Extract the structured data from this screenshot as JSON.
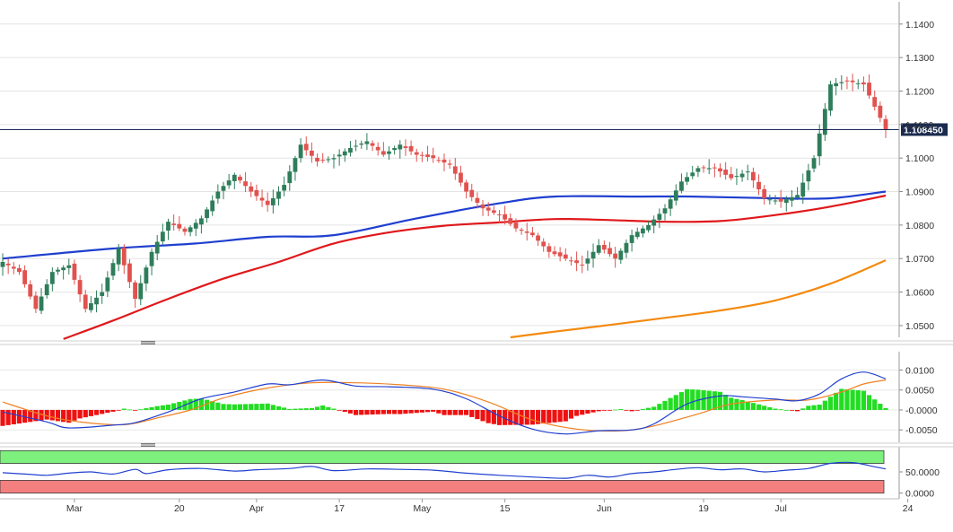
{
  "chart_data": {
    "type": "candlestick",
    "instrument_panel": {
      "y_ticks": [
        "1.1400",
        "1.1300",
        "1.1200",
        "1.1100",
        "1.1000",
        "1.0900",
        "1.0800",
        "1.0700",
        "1.0600",
        "1.0500"
      ],
      "ylim": [
        1.0465,
        1.1445
      ],
      "last_price": 1.1085,
      "last_price_label": "1.108450",
      "colors": {
        "up": "#2e7d5b",
        "down": "#e0524f",
        "sma_fast": "#1f3fcf",
        "sma_mid": "#e0181b",
        "sma_slow": "#f38a10"
      },
      "anchors": [
        {
          "i": 0,
          "v": 1.069
        },
        {
          "i": 3,
          "v": 1.066
        },
        {
          "i": 6,
          "v": 1.055
        },
        {
          "i": 9,
          "v": 1.066
        },
        {
          "i": 12,
          "v": 1.068
        },
        {
          "i": 15,
          "v": 1.055
        },
        {
          "i": 18,
          "v": 1.06
        },
        {
          "i": 21,
          "v": 1.073
        },
        {
          "i": 24,
          "v": 1.058
        },
        {
          "i": 27,
          "v": 1.072
        },
        {
          "i": 30,
          "v": 1.081
        },
        {
          "i": 33,
          "v": 1.078
        },
        {
          "i": 36,
          "v": 1.082
        },
        {
          "i": 39,
          "v": 1.09
        },
        {
          "i": 42,
          "v": 1.095
        },
        {
          "i": 45,
          "v": 1.09
        },
        {
          "i": 48,
          "v": 1.086
        },
        {
          "i": 51,
          "v": 1.092
        },
        {
          "i": 54,
          "v": 1.104
        },
        {
          "i": 57,
          "v": 1.099
        },
        {
          "i": 60,
          "v": 1.1
        },
        {
          "i": 63,
          "v": 1.103
        },
        {
          "i": 66,
          "v": 1.105
        },
        {
          "i": 69,
          "v": 1.101
        },
        {
          "i": 72,
          "v": 1.104
        },
        {
          "i": 75,
          "v": 1.101
        },
        {
          "i": 78,
          "v": 1.1
        },
        {
          "i": 81,
          "v": 1.098
        },
        {
          "i": 84,
          "v": 1.09
        },
        {
          "i": 87,
          "v": 1.085
        },
        {
          "i": 90,
          "v": 1.083
        },
        {
          "i": 93,
          "v": 1.079
        },
        {
          "i": 96,
          "v": 1.077
        },
        {
          "i": 99,
          "v": 1.072
        },
        {
          "i": 102,
          "v": 1.07
        },
        {
          "i": 105,
          "v": 1.068
        },
        {
          "i": 108,
          "v": 1.074
        },
        {
          "i": 111,
          "v": 1.07
        },
        {
          "i": 114,
          "v": 1.077
        },
        {
          "i": 117,
          "v": 1.08
        },
        {
          "i": 120,
          "v": 1.085
        },
        {
          "i": 123,
          "v": 1.093
        },
        {
          "i": 126,
          "v": 1.097
        },
        {
          "i": 129,
          "v": 1.097
        },
        {
          "i": 132,
          "v": 1.094
        },
        {
          "i": 135,
          "v": 1.096
        },
        {
          "i": 138,
          "v": 1.088
        },
        {
          "i": 141,
          "v": 1.087
        },
        {
          "i": 144,
          "v": 1.089
        },
        {
          "i": 147,
          "v": 1.1
        },
        {
          "i": 150,
          "v": 1.122
        },
        {
          "i": 153,
          "v": 1.123
        },
        {
          "i": 156,
          "v": 1.122
        },
        {
          "i": 159,
          "v": 1.112
        },
        {
          "i": 160,
          "v": 1.1085
        }
      ],
      "sma_fast": [
        {
          "i": 0,
          "v": 1.07
        },
        {
          "i": 20,
          "v": 1.073
        },
        {
          "i": 35,
          "v": 1.0745
        },
        {
          "i": 48,
          "v": 1.0765
        },
        {
          "i": 60,
          "v": 1.077
        },
        {
          "i": 75,
          "v": 1.082
        },
        {
          "i": 90,
          "v": 1.0865
        },
        {
          "i": 100,
          "v": 1.0885
        },
        {
          "i": 115,
          "v": 1.0885
        },
        {
          "i": 125,
          "v": 1.0885
        },
        {
          "i": 140,
          "v": 1.088
        },
        {
          "i": 150,
          "v": 1.088
        },
        {
          "i": 160,
          "v": 1.09
        }
      ],
      "sma_mid": [
        {
          "i": 11,
          "v": 1.046
        },
        {
          "i": 20,
          "v": 1.0515
        },
        {
          "i": 30,
          "v": 1.058
        },
        {
          "i": 40,
          "v": 1.064
        },
        {
          "i": 50,
          "v": 1.069
        },
        {
          "i": 60,
          "v": 1.0745
        },
        {
          "i": 70,
          "v": 1.0778
        },
        {
          "i": 80,
          "v": 1.0798
        },
        {
          "i": 90,
          "v": 1.0808
        },
        {
          "i": 100,
          "v": 1.0818
        },
        {
          "i": 110,
          "v": 1.0815
        },
        {
          "i": 120,
          "v": 1.081
        },
        {
          "i": 130,
          "v": 1.0812
        },
        {
          "i": 140,
          "v": 1.083
        },
        {
          "i": 150,
          "v": 1.0855
        },
        {
          "i": 160,
          "v": 1.0888
        }
      ],
      "sma_slow": [
        {
          "i": 92,
          "v": 1.0465
        },
        {
          "i": 100,
          "v": 1.0482
        },
        {
          "i": 110,
          "v": 1.0502
        },
        {
          "i": 120,
          "v": 1.0523
        },
        {
          "i": 130,
          "v": 1.0545
        },
        {
          "i": 140,
          "v": 1.0575
        },
        {
          "i": 150,
          "v": 1.0625
        },
        {
          "i": 160,
          "v": 1.0695
        }
      ]
    },
    "macd_panel": {
      "y_ticks": [
        "0.0100",
        "0.0050",
        "-0.0000",
        "-0.0050"
      ],
      "ylim": [
        -0.0072,
        0.0128
      ],
      "colors": {
        "macd": "#2040d0",
        "signal": "#f08020",
        "hist_up": "#22dd22",
        "hist_down": "#ee1111"
      },
      "macd": [
        {
          "i": 0,
          "v": -0.0005
        },
        {
          "i": 8,
          "v": -0.003
        },
        {
          "i": 12,
          "v": -0.0045
        },
        {
          "i": 20,
          "v": -0.0038
        },
        {
          "i": 24,
          "v": -0.0032
        },
        {
          "i": 30,
          "v": -0.0005
        },
        {
          "i": 36,
          "v": 0.0028
        },
        {
          "i": 42,
          "v": 0.0045
        },
        {
          "i": 48,
          "v": 0.0065
        },
        {
          "i": 52,
          "v": 0.0063
        },
        {
          "i": 58,
          "v": 0.0075
        },
        {
          "i": 64,
          "v": 0.006
        },
        {
          "i": 70,
          "v": 0.0058
        },
        {
          "i": 78,
          "v": 0.0052
        },
        {
          "i": 84,
          "v": 0.0028
        },
        {
          "i": 90,
          "v": -0.0015
        },
        {
          "i": 96,
          "v": -0.0048
        },
        {
          "i": 102,
          "v": -0.006
        },
        {
          "i": 108,
          "v": -0.0052
        },
        {
          "i": 114,
          "v": -0.005
        },
        {
          "i": 118,
          "v": -0.0035
        },
        {
          "i": 124,
          "v": 0.0015
        },
        {
          "i": 130,
          "v": 0.0035
        },
        {
          "i": 134,
          "v": 0.0033
        },
        {
          "i": 140,
          "v": 0.0027
        },
        {
          "i": 144,
          "v": 0.0023
        },
        {
          "i": 148,
          "v": 0.004
        },
        {
          "i": 152,
          "v": 0.0078
        },
        {
          "i": 156,
          "v": 0.0095
        },
        {
          "i": 160,
          "v": 0.0078
        }
      ],
      "signal": [
        {
          "i": 0,
          "v": 0.002
        },
        {
          "i": 8,
          "v": -0.0015
        },
        {
          "i": 14,
          "v": -0.003
        },
        {
          "i": 22,
          "v": -0.0037
        },
        {
          "i": 28,
          "v": -0.002
        },
        {
          "i": 34,
          "v": 0.0
        },
        {
          "i": 40,
          "v": 0.003
        },
        {
          "i": 48,
          "v": 0.0055
        },
        {
          "i": 56,
          "v": 0.0068
        },
        {
          "i": 64,
          "v": 0.0068
        },
        {
          "i": 72,
          "v": 0.0063
        },
        {
          "i": 80,
          "v": 0.0052
        },
        {
          "i": 88,
          "v": 0.002
        },
        {
          "i": 96,
          "v": -0.0025
        },
        {
          "i": 104,
          "v": -0.0048
        },
        {
          "i": 112,
          "v": -0.0052
        },
        {
          "i": 118,
          "v": -0.004
        },
        {
          "i": 126,
          "v": -0.001
        },
        {
          "i": 132,
          "v": 0.0015
        },
        {
          "i": 140,
          "v": 0.0025
        },
        {
          "i": 146,
          "v": 0.0025
        },
        {
          "i": 152,
          "v": 0.0045
        },
        {
          "i": 156,
          "v": 0.0065
        },
        {
          "i": 160,
          "v": 0.0075
        }
      ]
    },
    "rsi_panel": {
      "y_ticks": [
        "50.0000",
        "0.0000"
      ],
      "ylim": [
        -5,
        105
      ],
      "bands": {
        "top": [
          70,
          100
        ],
        "bottom": [
          0,
          30
        ]
      },
      "colors": {
        "line": "#2040d0",
        "band_top": "#7df07d",
        "band_bottom": "#f47f7f"
      },
      "rsi": [
        {
          "i": 0,
          "v": 48
        },
        {
          "i": 4,
          "v": 45
        },
        {
          "i": 8,
          "v": 42
        },
        {
          "i": 12,
          "v": 47
        },
        {
          "i": 16,
          "v": 50
        },
        {
          "i": 20,
          "v": 45
        },
        {
          "i": 24,
          "v": 56
        },
        {
          "i": 26,
          "v": 46
        },
        {
          "i": 30,
          "v": 55
        },
        {
          "i": 36,
          "v": 58
        },
        {
          "i": 42,
          "v": 52
        },
        {
          "i": 46,
          "v": 55
        },
        {
          "i": 52,
          "v": 58
        },
        {
          "i": 56,
          "v": 63
        },
        {
          "i": 60,
          "v": 53
        },
        {
          "i": 66,
          "v": 57
        },
        {
          "i": 72,
          "v": 56
        },
        {
          "i": 78,
          "v": 54
        },
        {
          "i": 84,
          "v": 47
        },
        {
          "i": 90,
          "v": 42
        },
        {
          "i": 96,
          "v": 38
        },
        {
          "i": 102,
          "v": 35
        },
        {
          "i": 106,
          "v": 42
        },
        {
          "i": 110,
          "v": 38
        },
        {
          "i": 114,
          "v": 46
        },
        {
          "i": 118,
          "v": 50
        },
        {
          "i": 122,
          "v": 56
        },
        {
          "i": 126,
          "v": 60
        },
        {
          "i": 130,
          "v": 55
        },
        {
          "i": 134,
          "v": 57
        },
        {
          "i": 138,
          "v": 50
        },
        {
          "i": 142,
          "v": 54
        },
        {
          "i": 146,
          "v": 58
        },
        {
          "i": 150,
          "v": 70
        },
        {
          "i": 154,
          "v": 72
        },
        {
          "i": 158,
          "v": 62
        },
        {
          "i": 160,
          "v": 57
        }
      ]
    },
    "x_labels": [
      {
        "text": "Mar",
        "i": 13
      },
      {
        "text": "20",
        "i": 32
      },
      {
        "text": "Apr",
        "i": 46
      },
      {
        "text": "17",
        "i": 61
      },
      {
        "text": "May",
        "i": 76
      },
      {
        "text": "15",
        "i": 91
      },
      {
        "text": "Jun",
        "i": 109
      },
      {
        "text": "19",
        "i": 127
      },
      {
        "text": "Jul",
        "i": 141
      },
      {
        "text": "24",
        "i": 164
      }
    ]
  }
}
